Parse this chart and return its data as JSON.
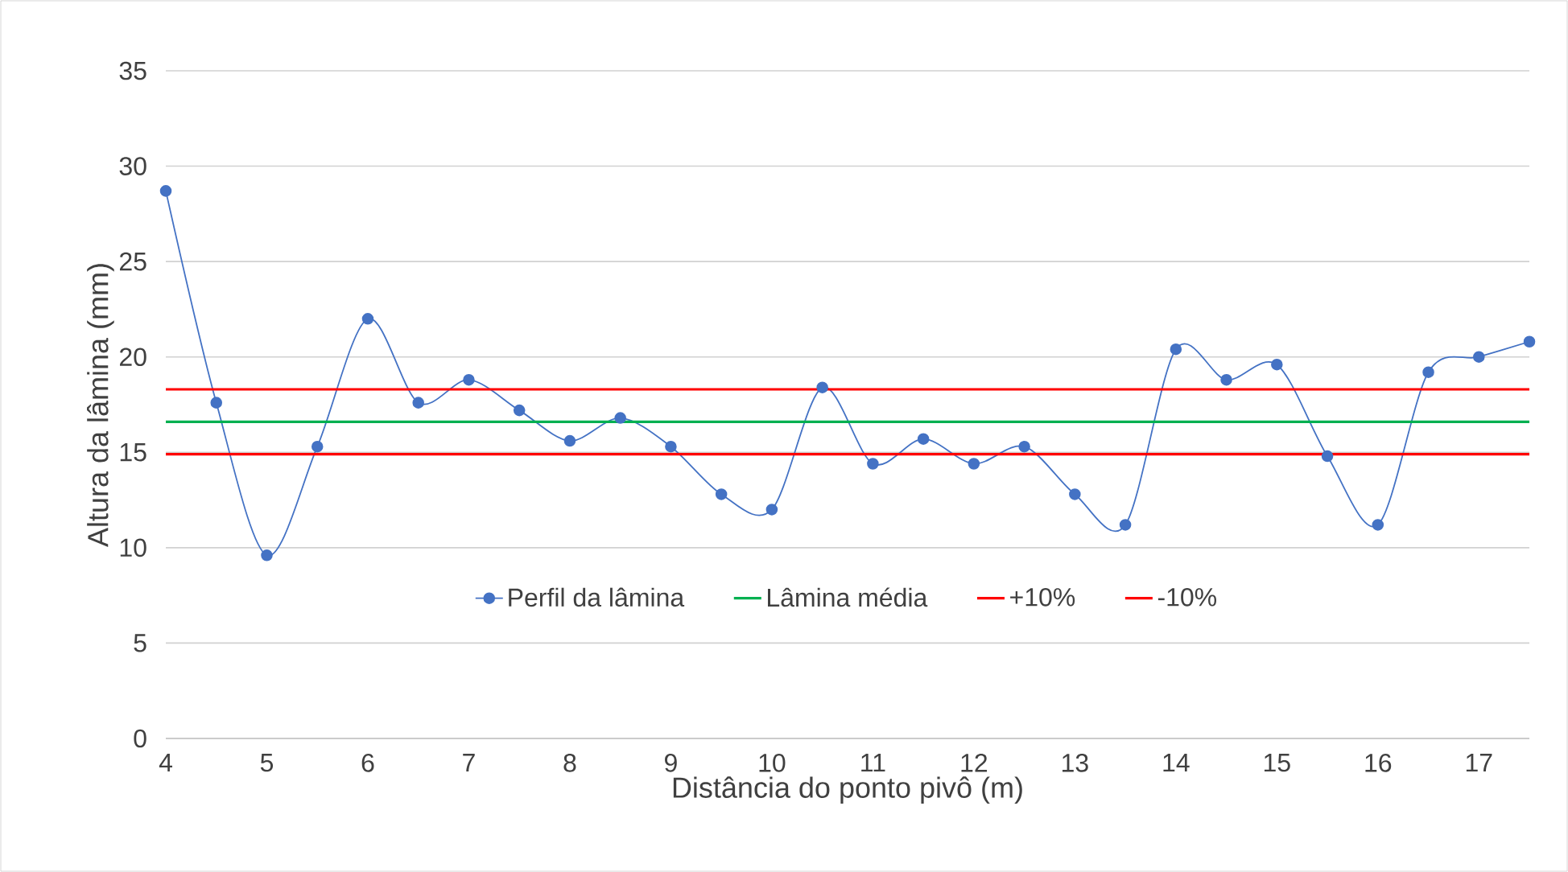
{
  "chart_data": {
    "type": "line",
    "xlabel": "Distância do ponto pivô (m)",
    "ylabel": "Altura da lâmina (mm)",
    "x": [
      4,
      4.5,
      5,
      5.5,
      6,
      6.5,
      7,
      7.5,
      8,
      8.5,
      9,
      9.5,
      10,
      10.5,
      11,
      11.5,
      12,
      12.5,
      13,
      13.5,
      14,
      14.5,
      15,
      15.5,
      16,
      16.5,
      17,
      17.5
    ],
    "series": [
      {
        "name": "Perfil da lâmina",
        "color": "#4472c4",
        "values": [
          28.7,
          17.6,
          9.6,
          15.3,
          22.0,
          17.6,
          18.8,
          17.2,
          15.6,
          16.8,
          15.3,
          12.8,
          12.0,
          18.4,
          14.4,
          15.7,
          14.4,
          15.3,
          12.8,
          11.2,
          20.4,
          18.8,
          19.6,
          14.8,
          11.2,
          19.2,
          20.0,
          20.8
        ]
      },
      {
        "name": "Lâmina média",
        "color": "#00b050",
        "marker": "none",
        "values": [
          16.6,
          16.6,
          16.6,
          16.6,
          16.6,
          16.6,
          16.6,
          16.6,
          16.6,
          16.6,
          16.6,
          16.6,
          16.6,
          16.6,
          16.6,
          16.6,
          16.6,
          16.6,
          16.6,
          16.6,
          16.6,
          16.6,
          16.6,
          16.6,
          16.6,
          16.6,
          16.6,
          16.6
        ]
      },
      {
        "name": "+10%",
        "color": "#ff0000",
        "marker": "none",
        "values": [
          18.3,
          18.3,
          18.3,
          18.3,
          18.3,
          18.3,
          18.3,
          18.3,
          18.3,
          18.3,
          18.3,
          18.3,
          18.3,
          18.3,
          18.3,
          18.3,
          18.3,
          18.3,
          18.3,
          18.3,
          18.3,
          18.3,
          18.3,
          18.3,
          18.3,
          18.3,
          18.3,
          18.3
        ]
      },
      {
        "name": "-10%",
        "color": "#ff0000",
        "marker": "none",
        "values": [
          14.9,
          14.9,
          14.9,
          14.9,
          14.9,
          14.9,
          14.9,
          14.9,
          14.9,
          14.9,
          14.9,
          14.9,
          14.9,
          14.9,
          14.9,
          14.9,
          14.9,
          14.9,
          14.9,
          14.9,
          14.9,
          14.9,
          14.9,
          14.9,
          14.9,
          14.9,
          14.9,
          14.9
        ]
      }
    ],
    "xlim": [
      4,
      17.5
    ],
    "xticks": [
      4,
      5,
      6,
      7,
      8,
      9,
      10,
      11,
      12,
      13,
      14,
      15,
      16,
      17
    ],
    "ylim": [
      0,
      35
    ],
    "yticks": [
      0,
      5,
      10,
      15,
      20,
      25,
      30,
      35
    ],
    "grid": "y",
    "legend": "bottom",
    "marker": "circle",
    "line_style": "solid"
  }
}
